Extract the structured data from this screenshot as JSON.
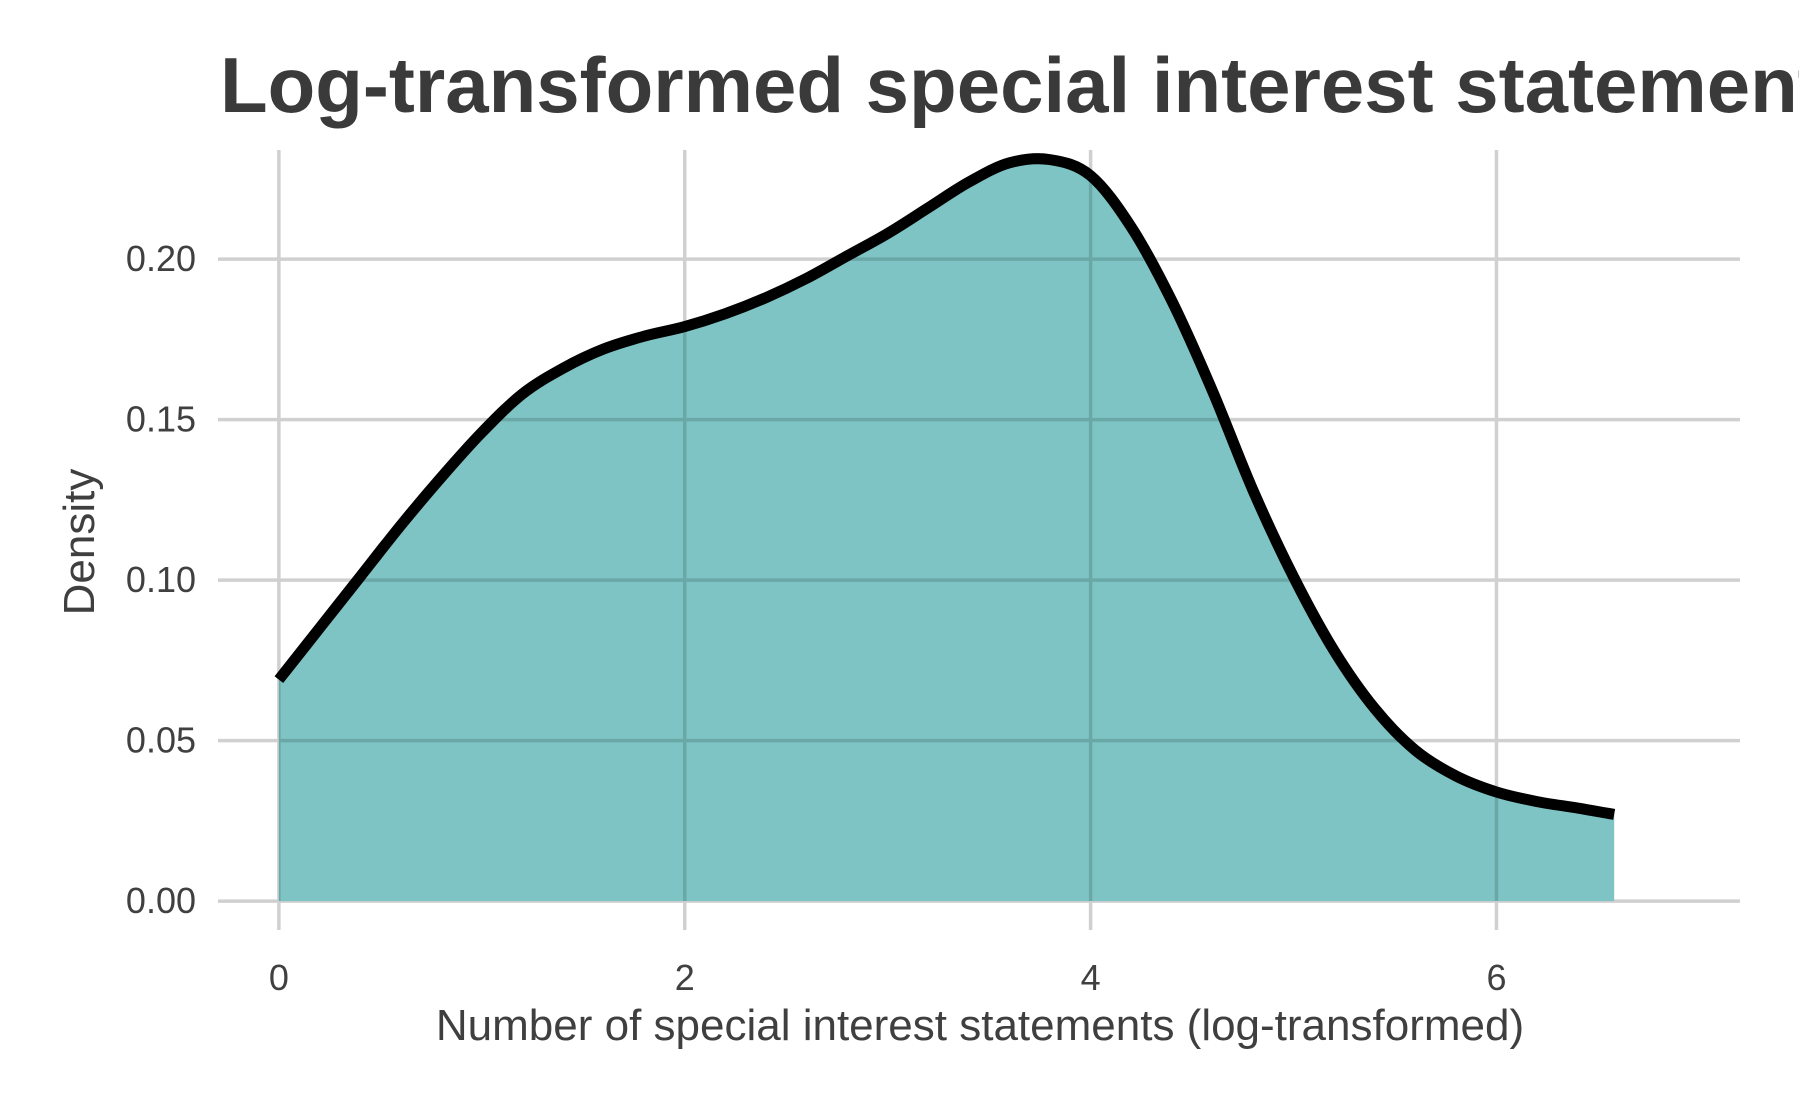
{
  "chart_data": {
    "type": "area",
    "title": "Log-transformed special interest statements",
    "xlabel": "Number of special interest statements (log-transformed)",
    "ylabel": "Density",
    "xlim": [
      -0.3,
      7.2
    ],
    "ylim": [
      -0.009,
      0.234
    ],
    "x_ticks": [
      0,
      2,
      4,
      6
    ],
    "x_tick_labels": [
      "0",
      "2",
      "4",
      "6"
    ],
    "y_ticks": [
      0.0,
      0.05,
      0.1,
      0.15,
      0.2
    ],
    "y_tick_labels": [
      "0.00",
      "0.05",
      "0.10",
      "0.15",
      "0.20"
    ],
    "grid": true,
    "fill_color": "#7fc4c4",
    "line_color": "#000000",
    "series": [
      {
        "x": [
          0.0,
          0.2,
          0.4,
          0.6,
          0.8,
          1.0,
          1.2,
          1.4,
          1.6,
          1.8,
          2.0,
          2.2,
          2.4,
          2.6,
          2.8,
          3.0,
          3.2,
          3.4,
          3.6,
          3.8,
          4.0,
          4.2,
          4.4,
          4.6,
          4.8,
          5.0,
          5.2,
          5.4,
          5.6,
          5.8,
          6.0,
          6.2,
          6.4,
          6.58
        ],
        "y": [
          0.069,
          0.085,
          0.101,
          0.117,
          0.132,
          0.146,
          0.158,
          0.166,
          0.172,
          0.176,
          0.179,
          0.183,
          0.188,
          0.194,
          0.201,
          0.208,
          0.216,
          0.224,
          0.23,
          0.231,
          0.226,
          0.21,
          0.187,
          0.159,
          0.128,
          0.101,
          0.078,
          0.06,
          0.047,
          0.039,
          0.034,
          0.031,
          0.029,
          0.027
        ]
      }
    ]
  }
}
